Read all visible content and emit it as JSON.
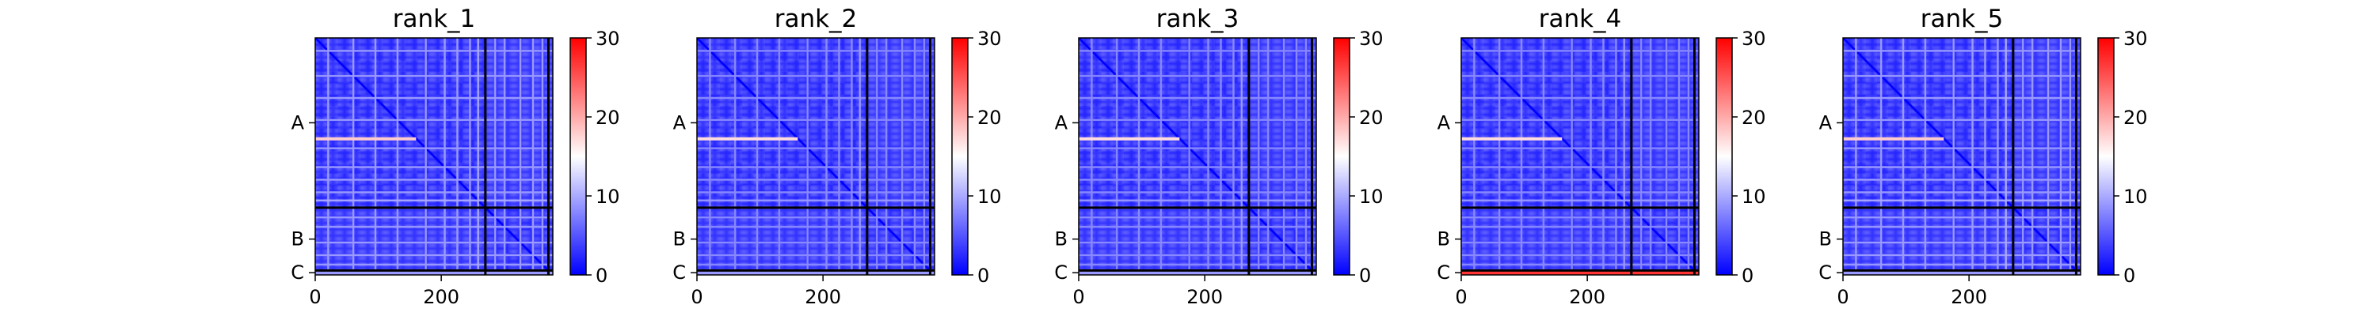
{
  "chart_data": {
    "type": "heatmap",
    "description_units": "predicted aligned error (PAE) matrix per model rank",
    "colormap": {
      "name": "bwr",
      "low": "#0000ff",
      "mid": "#ffffff",
      "high": "#ff0000"
    },
    "clim": [
      0,
      30
    ],
    "colorbar_ticks": [
      0,
      10,
      20,
      30
    ],
    "x_ticks": [
      0,
      200
    ],
    "xlim": [
      0,
      377
    ],
    "chains": [
      {
        "label": "A",
        "start": 0,
        "end": 270
      },
      {
        "label": "B",
        "start": 270,
        "end": 370
      },
      {
        "label": "C",
        "start": 370,
        "end": 377
      }
    ],
    "chain_boundaries": [
      270,
      370
    ],
    "panels": [
      {
        "title": "rank_1",
        "base_error": 3,
        "stripe_error": 12,
        "row_c_error": 9
      },
      {
        "title": "rank_2",
        "base_error": 3,
        "stripe_error": 11,
        "row_c_error": 9
      },
      {
        "title": "rank_3",
        "base_error": 3,
        "stripe_error": 11,
        "row_c_error": 9
      },
      {
        "title": "rank_4",
        "base_error": 3,
        "stripe_error": 11,
        "row_c_error": 27
      },
      {
        "title": "rank_5",
        "base_error": 3,
        "stripe_error": 12,
        "row_c_error": 9
      }
    ]
  }
}
